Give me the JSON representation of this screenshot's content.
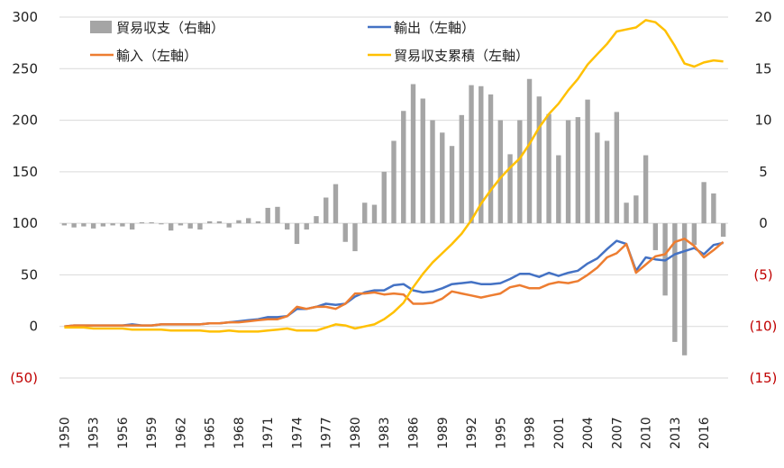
{
  "chart_data": {
    "type": "bar+line",
    "x": [
      1950,
      1951,
      1952,
      1953,
      1954,
      1955,
      1956,
      1957,
      1958,
      1959,
      1960,
      1961,
      1962,
      1963,
      1964,
      1965,
      1966,
      1967,
      1968,
      1969,
      1970,
      1971,
      1972,
      1973,
      1974,
      1975,
      1976,
      1977,
      1978,
      1979,
      1980,
      1981,
      1982,
      1983,
      1984,
      1985,
      1986,
      1987,
      1988,
      1989,
      1990,
      1991,
      1992,
      1993,
      1994,
      1995,
      1996,
      1997,
      1998,
      1999,
      2000,
      2001,
      2002,
      2003,
      2004,
      2005,
      2006,
      2007,
      2008,
      2009,
      2010,
      2011,
      2012,
      2013,
      2014,
      2015,
      2016,
      2017,
      2018
    ],
    "x_tick_labels": [
      "1950",
      "1953",
      "1956",
      "1959",
      "1962",
      "1965",
      "1968",
      "1971",
      "1974",
      "1977",
      "1980",
      "1983",
      "1986",
      "1989",
      "1992",
      "1995",
      "1998",
      "2001",
      "2004",
      "2007",
      "2010",
      "2013",
      "2016"
    ],
    "left_axis": {
      "min": -50,
      "max": 300,
      "ticks": [
        "300",
        "250",
        "200",
        "150",
        "100",
        "50",
        "0",
        "(50)"
      ]
    },
    "right_axis": {
      "min": -15,
      "max": 20,
      "ticks": [
        "20",
        "15",
        "10",
        "5",
        "0",
        "(5)",
        "(10)",
        "(15)"
      ]
    },
    "legend": [
      {
        "key": "trade_balance",
        "label": "貿易収支（右軸）",
        "kind": "bar",
        "color": "#a5a5a5"
      },
      {
        "key": "exports",
        "label": "輸出（左軸）",
        "kind": "line",
        "color": "#4472c4"
      },
      {
        "key": "imports",
        "label": "輸入（左軸）",
        "kind": "line",
        "color": "#ed7d31"
      },
      {
        "key": "cumulative",
        "label": "貿易収支累積（左軸）",
        "kind": "line",
        "color": "#ffc000"
      }
    ],
    "series": [
      {
        "name": "貿易収支（右軸）",
        "axis": "right",
        "type": "bar",
        "values": [
          -0.2,
          -0.4,
          -0.3,
          -0.5,
          -0.3,
          -0.2,
          -0.3,
          -0.6,
          0.1,
          0.1,
          -0.1,
          -0.7,
          -0.2,
          -0.5,
          -0.6,
          0.2,
          0.2,
          -0.4,
          0.3,
          0.5,
          0.2,
          1.5,
          1.6,
          -0.6,
          -2.0,
          -0.6,
          0.7,
          2.5,
          3.8,
          -1.8,
          -2.7,
          2.0,
          1.8,
          5.0,
          8.0,
          10.9,
          13.5,
          12.1,
          10.0,
          8.8,
          7.5,
          10.5,
          13.4,
          13.3,
          12.5,
          10.0,
          6.7,
          10.0,
          14.0,
          12.3,
          10.6,
          6.6,
          10.0,
          10.3,
          12.0,
          8.8,
          8.0,
          10.8,
          2.0,
          2.7,
          6.6,
          -2.6,
          -7.0,
          -11.5,
          -12.8,
          -2.1,
          4.0,
          2.9,
          -1.3
        ]
      },
      {
        "name": "輸出（左軸）",
        "axis": "left",
        "type": "line",
        "values": [
          0,
          1,
          1,
          1,
          1,
          1,
          1,
          2,
          1,
          1,
          2,
          2,
          2,
          2,
          2,
          3,
          3,
          4,
          5,
          6,
          7,
          9,
          9,
          10,
          17,
          17,
          19,
          22,
          21,
          22,
          29,
          33,
          35,
          35,
          40,
          41,
          35,
          33,
          34,
          37,
          41,
          42,
          43,
          41,
          41,
          42,
          46,
          51,
          51,
          48,
          52,
          49,
          52,
          54,
          61,
          66,
          75,
          83,
          80,
          54,
          67,
          65,
          64,
          70,
          73,
          76,
          70,
          79,
          81
        ]
      },
      {
        "name": "輸入（左軸）",
        "axis": "left",
        "type": "line",
        "values": [
          0,
          1,
          1,
          1,
          1,
          1,
          1,
          1,
          1,
          1,
          2,
          2,
          2,
          2,
          2,
          3,
          3,
          4,
          4,
          5,
          6,
          7,
          7,
          10,
          19,
          17,
          19,
          19,
          17,
          22,
          32,
          32,
          33,
          31,
          32,
          31,
          22,
          22,
          23,
          27,
          34,
          32,
          30,
          28,
          30,
          32,
          38,
          40,
          37,
          37,
          41,
          43,
          42,
          44,
          50,
          57,
          67,
          71,
          80,
          52,
          60,
          68,
          70,
          82,
          85,
          78,
          67,
          74,
          82
        ]
      },
      {
        "name": "貿易収支累積（左軸）",
        "axis": "left",
        "type": "line",
        "values": [
          -1,
          -1,
          -1,
          -2,
          -2,
          -2,
          -2,
          -3,
          -3,
          -3,
          -3,
          -4,
          -4,
          -4,
          -4,
          -5,
          -5,
          -4,
          -5,
          -5,
          -5,
          -4,
          -3,
          -2,
          -4,
          -4,
          -4,
          -1,
          2,
          1,
          -2,
          0,
          2,
          7,
          14,
          23,
          38,
          51,
          62,
          71,
          80,
          90,
          103,
          119,
          132,
          144,
          154,
          163,
          177,
          193,
          206,
          216,
          229,
          240,
          254,
          264,
          274,
          286,
          288,
          290,
          297,
          295,
          287,
          272,
          255,
          252,
          256,
          258,
          257
        ]
      }
    ]
  }
}
